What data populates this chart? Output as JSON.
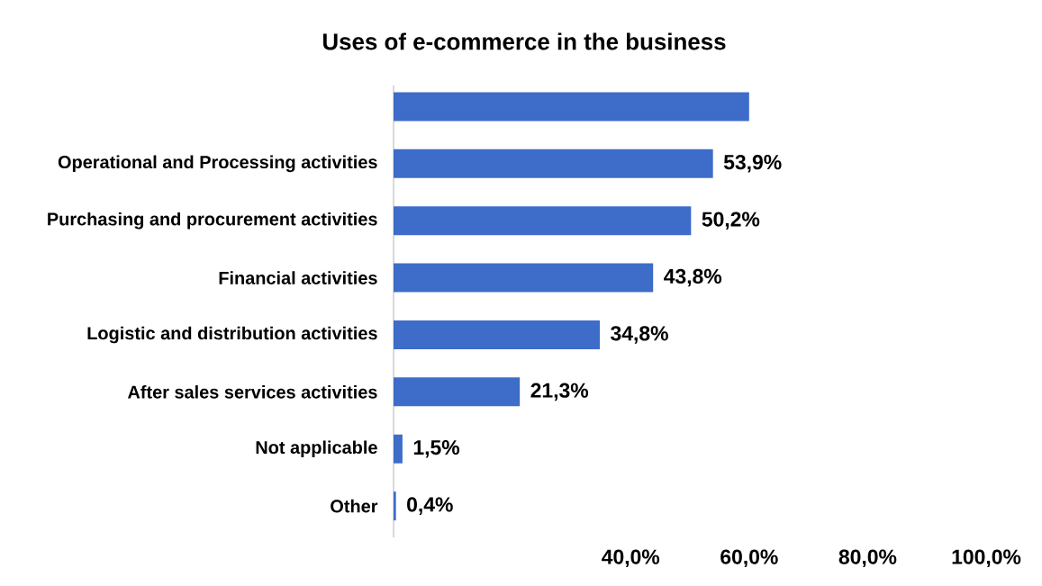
{
  "chart_data": {
    "type": "bar",
    "orientation": "horizontal",
    "title": "Uses of e-commerce in the business",
    "categories": [
      null,
      "Operational and Processing activities",
      "Purchasing and procurement activities",
      "Financial activities",
      "Logistic and distribution activities",
      "After sales services activities",
      "Not applicable",
      "Other"
    ],
    "values": [
      60,
      53.9,
      50.2,
      43.8,
      34.8,
      21.3,
      1.5,
      0.4
    ],
    "value_labels": [
      null,
      "53,9%",
      "50,2%",
      "43,8%",
      "34,8%",
      "21,3%",
      "1,5%",
      "0,4%"
    ],
    "color": "#3d6cc9",
    "xlim": [
      0,
      100
    ],
    "xticks": [
      {
        "value": 40,
        "label": "40,0%"
      },
      {
        "value": 60,
        "label": "60,0%"
      },
      {
        "value": 80,
        "label": "80,0%"
      },
      {
        "value": 100,
        "label": "100,0%"
      }
    ],
    "grid": false
  }
}
